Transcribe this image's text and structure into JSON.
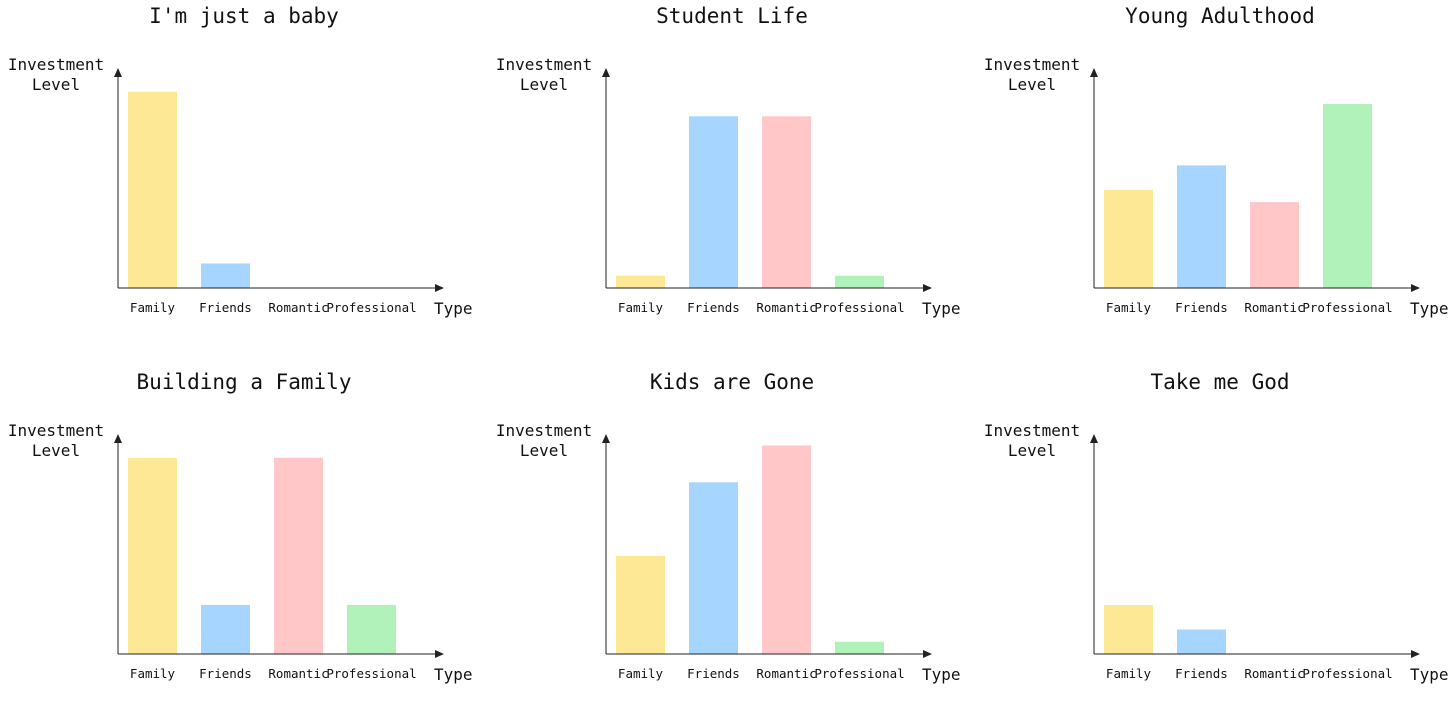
{
  "chart_data": [
    {
      "type": "bar",
      "title": "I'm just a baby",
      "ylabel": [
        "Investment",
        "Level"
      ],
      "xlabel": "Type",
      "categories": [
        "Family",
        "Friends",
        "Romantic",
        "Professional"
      ],
      "values": [
        8,
        1,
        0,
        0
      ],
      "ylim": [
        0,
        8.5
      ],
      "colors": [
        "#fde995",
        "#a6d6ff",
        "#ffc7c7",
        "#b1f2bb"
      ],
      "grid": false
    },
    {
      "type": "bar",
      "title": "Student Life",
      "ylabel": [
        "Investment",
        "Level"
      ],
      "xlabel": "Type",
      "categories": [
        "Family",
        "Friends",
        "Romantic",
        "Professional"
      ],
      "values": [
        0.5,
        7,
        7,
        0.5
      ],
      "ylim": [
        0,
        8.5
      ],
      "colors": [
        "#fde995",
        "#a6d6ff",
        "#ffc7c7",
        "#b1f2bb"
      ],
      "grid": false
    },
    {
      "type": "bar",
      "title": "Young Adulthood",
      "ylabel": [
        "Investment",
        "Level"
      ],
      "xlabel": "Type",
      "categories": [
        "Family",
        "Friends",
        "Romantic",
        "Professional"
      ],
      "values": [
        4,
        5,
        3.5,
        7.5
      ],
      "ylim": [
        0,
        8.5
      ],
      "colors": [
        "#fde995",
        "#a6d6ff",
        "#ffc7c7",
        "#b1f2bb"
      ],
      "grid": false
    },
    {
      "type": "bar",
      "title": "Building a Family",
      "ylabel": [
        "Investment",
        "Level"
      ],
      "xlabel": "Type",
      "categories": [
        "Family",
        "Friends",
        "Romantic",
        "Professional"
      ],
      "values": [
        8,
        2,
        8,
        2
      ],
      "ylim": [
        0,
        8.5
      ],
      "colors": [
        "#fde995",
        "#a6d6ff",
        "#ffc7c7",
        "#b1f2bb"
      ],
      "grid": false
    },
    {
      "type": "bar",
      "title": "Kids are Gone",
      "ylabel": [
        "Investment",
        "Level"
      ],
      "xlabel": "Type",
      "categories": [
        "Family",
        "Friends",
        "Romantic",
        "Professional"
      ],
      "values": [
        4,
        7,
        8.5,
        0.5
      ],
      "ylim": [
        0,
        8.5
      ],
      "colors": [
        "#fde995",
        "#a6d6ff",
        "#ffc7c7",
        "#b1f2bb"
      ],
      "grid": false
    },
    {
      "type": "bar",
      "title": "Take me God",
      "ylabel": [
        "Investment",
        "Level"
      ],
      "xlabel": "Type",
      "categories": [
        "Family",
        "Friends",
        "Romantic",
        "Professional"
      ],
      "values": [
        2,
        1,
        0,
        0
      ],
      "ylim": [
        0,
        8.5
      ],
      "colors": [
        "#fde995",
        "#a6d6ff",
        "#ffc7c7",
        "#b1f2bb"
      ],
      "grid": false
    }
  ]
}
